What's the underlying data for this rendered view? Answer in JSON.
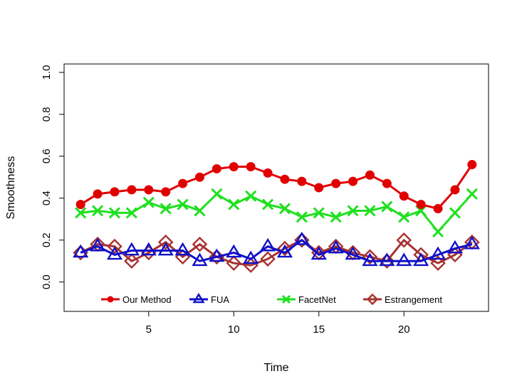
{
  "chart_data": {
    "type": "line",
    "title": "",
    "xlabel": "Time",
    "ylabel": "Smoothness",
    "xlim": [
      0.03,
      24.97
    ],
    "ylim": [
      -0.14,
      1.04
    ],
    "xticks": [
      5,
      10,
      15,
      20
    ],
    "yticks": [
      0.0,
      0.2,
      0.4,
      0.6,
      0.8,
      1.0
    ],
    "xtick_labels": [
      "5",
      "10",
      "15",
      "20"
    ],
    "ytick_labels": [
      "0.0",
      "0.2",
      "0.4",
      "0.6",
      "0.8",
      "1.0"
    ],
    "x": [
      1,
      2,
      3,
      4,
      5,
      6,
      7,
      8,
      9,
      10,
      11,
      12,
      13,
      14,
      15,
      16,
      17,
      18,
      19,
      20,
      21,
      22,
      23,
      24
    ],
    "legend_position": "bottom",
    "series": [
      {
        "name": "Our Method",
        "color": "#e00000",
        "marker": "filled-circle",
        "values": [
          0.37,
          0.42,
          0.43,
          0.44,
          0.44,
          0.43,
          0.47,
          0.5,
          0.54,
          0.55,
          0.55,
          0.52,
          0.49,
          0.48,
          0.45,
          0.47,
          0.48,
          0.51,
          0.47,
          0.41,
          0.37,
          0.35,
          0.44,
          0.56
        ]
      },
      {
        "name": "FUA",
        "color": "#1010c8",
        "marker": "triangle",
        "values": [
          0.14,
          0.17,
          0.13,
          0.15,
          0.15,
          0.15,
          0.15,
          0.1,
          0.12,
          0.14,
          0.11,
          0.17,
          0.14,
          0.2,
          0.13,
          0.16,
          0.13,
          0.1,
          0.1,
          0.1,
          0.1,
          0.13,
          0.16,
          0.18
        ]
      },
      {
        "name": "FacetNet",
        "color": "#20e020",
        "marker": "cross",
        "values": [
          0.33,
          0.34,
          0.33,
          0.33,
          0.38,
          0.35,
          0.37,
          0.34,
          0.42,
          0.37,
          0.41,
          0.37,
          0.35,
          0.31,
          0.33,
          0.31,
          0.34,
          0.34,
          0.36,
          0.31,
          0.34,
          0.24,
          0.33,
          0.42
        ]
      },
      {
        "name": "Estrangement",
        "color": "#a83232",
        "marker": "diamond",
        "values": [
          0.14,
          0.18,
          0.17,
          0.1,
          0.14,
          0.19,
          0.12,
          0.18,
          0.12,
          0.09,
          0.08,
          0.11,
          0.16,
          0.2,
          0.14,
          0.17,
          0.14,
          0.12,
          0.1,
          0.2,
          0.13,
          0.09,
          0.13,
          0.19
        ]
      }
    ]
  }
}
